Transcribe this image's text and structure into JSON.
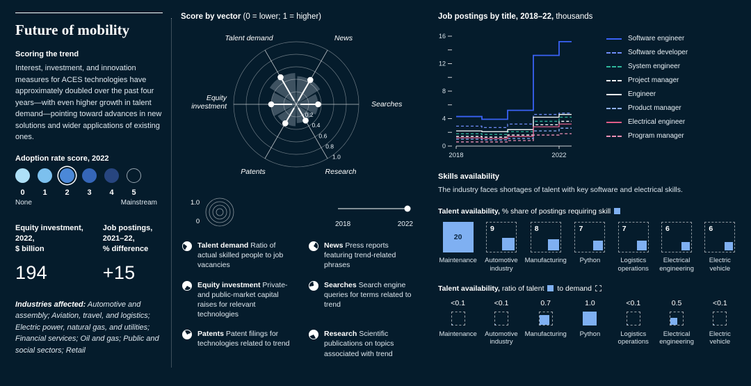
{
  "colors": {
    "background": "#051C2C",
    "accent_blue_square": "#7FB0F2",
    "text": "#FFFFFF"
  },
  "left": {
    "title": "Future of mobility",
    "scoring_heading": "Scoring the trend",
    "paragraph": "Interest, investment, and innovation measures for ACES technologies have approximately doubled over the past four years—with even higher growth in talent demand—pointing toward advances in new solutions and wider applications of existing ones.",
    "adoption": {
      "heading": "Adoption rate score, 2022",
      "selected_index": 2,
      "items": [
        {
          "label": "0",
          "color": "#AEE0F7"
        },
        {
          "label": "1",
          "color": "#7CC0EE"
        },
        {
          "label": "2",
          "color": "#4B88D8"
        },
        {
          "label": "3",
          "color": "#3566B8"
        },
        {
          "label": "4",
          "color": "#27457F"
        },
        {
          "label": "5",
          "color": "none"
        }
      ],
      "min_label": "None",
      "max_label": "Mainstream"
    },
    "stats": [
      {
        "label_lines": [
          "Equity investment,",
          "2022,",
          "$ billion"
        ],
        "value": "194"
      },
      {
        "label_lines": [
          "Job postings,",
          "2021–22,",
          "% difference"
        ],
        "value": "+15"
      }
    ],
    "industries_label": "Industries affected:",
    "industries_text": " Automotive and assembly; Aviation, travel, and logistics; Electric power, natural gas, and utilities; Financial services; Oil and gas; Public and social sectors; Retail"
  },
  "middle": {
    "title_bold": "Score by vector",
    "title_rest": " (0 = lower; 1 = higher)",
    "mini_scale": {
      "top": "1.0",
      "bottom": "0"
    },
    "timeline": {
      "start": "2018",
      "end": "2022"
    },
    "legend": [
      {
        "term": "Talent demand",
        "desc": "Ratio of actual skilled people to job vacancies"
      },
      {
        "term": "Equity investment",
        "desc": "Private- and public-market capital raises for relevant technologies"
      },
      {
        "term": "Patents",
        "desc": "Patent filings for technologies related to trend"
      },
      {
        "term": "News",
        "desc": "Press reports featuring trend-related phrases"
      },
      {
        "term": "Searches",
        "desc": "Search engine queries for terms related to trend"
      },
      {
        "term": "Research",
        "desc": "Scientific publications on topics associated with trend"
      }
    ]
  },
  "right": {
    "chart_title_bold": "Job postings by title, 2018–22,",
    "chart_title_rest": " thousands",
    "skills_heading": "Skills availability",
    "skills_text": "The industry faces shortages of talent with key software and electrical skills.",
    "avail_heading_bold": "Talent availability,",
    "avail_heading_rest": " % share of postings requiring skill",
    "ratio_heading_bold": "Talent availability,",
    "ratio_heading_pre": " ratio of talent",
    "ratio_heading_mid": " to demand"
  },
  "chart_data": [
    {
      "type": "radar",
      "title": "Score by vector (0 = lower; 1 = higher)",
      "rings": [
        0.2,
        0.4,
        0.6,
        0.8,
        1.0
      ],
      "axes": [
        {
          "name": "Talent demand",
          "angle": 120,
          "value": 0.5
        },
        {
          "name": "News",
          "angle": 60,
          "value": 0.45
        },
        {
          "name": "Searches",
          "angle": 0,
          "value": 0.35
        },
        {
          "name": "Research",
          "angle": 300,
          "value": 0.3
        },
        {
          "name": "Patents",
          "angle": 240,
          "value": 0.35
        },
        {
          "name": "Equity investment",
          "angle": 180,
          "value": 0.4
        }
      ]
    },
    {
      "type": "line",
      "title": "Job postings by title, 2018–22, thousands",
      "x": [
        2018,
        2019,
        2020,
        2021,
        2022
      ],
      "x_labels": [
        "2018",
        "2022"
      ],
      "ylim": [
        0,
        16
      ],
      "yticks": [
        0,
        4,
        8,
        12,
        16
      ],
      "legend_position": "right",
      "series": [
        {
          "name": "Software engineer",
          "color": "#3A62F5",
          "dash": false,
          "values": [
            4.3,
            3.9,
            5.2,
            13.2,
            15.2
          ]
        },
        {
          "name": "Software developer",
          "color": "#6E8CF7",
          "dash": true,
          "values": [
            2.9,
            2.7,
            3.2,
            4.6,
            4.8
          ]
        },
        {
          "name": "System engineer",
          "color": "#2FB79B",
          "dash": true,
          "values": [
            1.8,
            1.7,
            2.1,
            3.6,
            4.2
          ]
        },
        {
          "name": "Project manager",
          "color": "#FFFFFF",
          "dash": true,
          "values": [
            1.4,
            1.3,
            1.6,
            3.1,
            3.6
          ]
        },
        {
          "name": "Engineer",
          "color": "#FFFFFF",
          "dash": false,
          "values": [
            2.2,
            2.1,
            2.4,
            4.2,
            4.6
          ]
        },
        {
          "name": "Product manager",
          "color": "#8FB0FA",
          "dash": true,
          "values": [
            1.0,
            0.9,
            1.1,
            2.2,
            2.6
          ]
        },
        {
          "name": "Electrical engineer",
          "color": "#E05C86",
          "dash": false,
          "values": [
            1.2,
            1.1,
            1.4,
            2.8,
            3.2
          ]
        },
        {
          "name": "Program manager",
          "color": "#ED8FB4",
          "dash": true,
          "values": [
            0.6,
            0.6,
            0.8,
            1.6,
            1.8
          ]
        }
      ]
    },
    {
      "type": "bar",
      "title": "Talent availability, % share of postings requiring skill",
      "categories": [
        "Maintenance",
        "Automotive industry",
        "Manufacturing",
        "Python",
        "Logistics operations",
        "Electrical engineering",
        "Electric vehicle"
      ],
      "values": [
        20,
        9,
        8,
        7,
        7,
        6,
        6
      ]
    },
    {
      "type": "bar",
      "title": "Talent availability, ratio of talent to demand",
      "categories": [
        "Maintenance",
        "Automotive industry",
        "Manufacturing",
        "Python",
        "Logistics operations",
        "Electrical engineering",
        "Electric vehicle"
      ],
      "values": [
        "<0.1",
        "<0.1",
        "0.7",
        "1.0",
        "<0.1",
        "0.5",
        "<0.1"
      ],
      "ratios": [
        0.05,
        0.05,
        0.7,
        1.0,
        0.05,
        0.5,
        0.05
      ]
    }
  ]
}
